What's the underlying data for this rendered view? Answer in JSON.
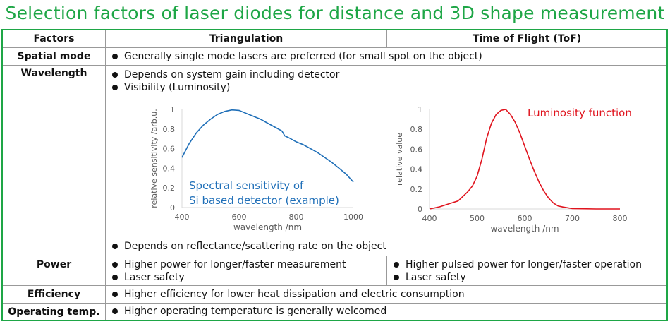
{
  "title": "Selection factors of laser diodes for distance and 3D shape measurement",
  "colors": {
    "accent": "#1ea646",
    "detector_curve": "#1f6fb8",
    "luminosity_curve": "#e0141e"
  },
  "headers": {
    "factors": "Factors",
    "triangulation": "Triangulation",
    "tof": "Time of Flight (ToF)"
  },
  "rows": {
    "spatial": {
      "label": "Spatial mode",
      "items": [
        "Generally single mode lasers are preferred (for small spot on the object)"
      ]
    },
    "wavelength": {
      "label": "Wavelength",
      "items": [
        "Depends on system gain including detector",
        "Visibility (Luminosity)"
      ],
      "bottom_item": "Depends on reflectance/scattering rate on the object"
    },
    "power": {
      "label": "Power",
      "triangulation": [
        "Higher power for longer/faster measurement",
        "Laser safety"
      ],
      "tof": [
        "Higher pulsed power for longer/faster operation",
        "Laser safety"
      ]
    },
    "efficiency": {
      "label": "Efficiency",
      "items": [
        "Higher efficiency for lower heat dissipation and electric consumption"
      ]
    },
    "operating": {
      "label": "Operating temp.",
      "items": [
        "Higher operating temperature is generally welcomed"
      ]
    }
  },
  "chart_data": [
    {
      "type": "line",
      "xlabel": "wavelength /nm",
      "ylabel": "relative sensitivity /arb.u.",
      "annotation": [
        "Spectral sensitivity of",
        "Si based detector (example)"
      ],
      "xlim": [
        400,
        1000
      ],
      "ylim": [
        0,
        1
      ],
      "xticks": [
        "400",
        "600",
        "800",
        "1000"
      ],
      "yticks": [
        "0",
        "0.2",
        "0.4",
        "0.6",
        "0.8",
        "1"
      ],
      "grid": false,
      "x": [
        400,
        425,
        450,
        475,
        500,
        525,
        550,
        575,
        600,
        625,
        650,
        675,
        700,
        725,
        750,
        760,
        775,
        800,
        825,
        850,
        875,
        900,
        925,
        950,
        975,
        1000
      ],
      "y": [
        0.51,
        0.65,
        0.76,
        0.84,
        0.9,
        0.95,
        0.98,
        0.995,
        0.99,
        0.96,
        0.93,
        0.9,
        0.86,
        0.82,
        0.78,
        0.73,
        0.71,
        0.67,
        0.64,
        0.6,
        0.56,
        0.51,
        0.46,
        0.4,
        0.34,
        0.26
      ]
    },
    {
      "type": "line",
      "xlabel": "wavelength /nm",
      "ylabel": "relative value",
      "annotation": [
        "Luminosity function"
      ],
      "xlim": [
        400,
        800
      ],
      "ylim": [
        0,
        1
      ],
      "xticks": [
        "400",
        "500",
        "600",
        "700",
        "800"
      ],
      "yticks": [
        "0",
        "0.2",
        "0.4",
        "0.6",
        "0.8",
        "1"
      ],
      "grid": false,
      "x": [
        400,
        420,
        440,
        460,
        480,
        490,
        500,
        510,
        520,
        530,
        540,
        550,
        560,
        570,
        580,
        590,
        600,
        610,
        620,
        630,
        640,
        650,
        660,
        670,
        680,
        700,
        750,
        800
      ],
      "y": [
        0,
        0.02,
        0.05,
        0.08,
        0.17,
        0.23,
        0.33,
        0.5,
        0.71,
        0.86,
        0.95,
        0.99,
        1.0,
        0.95,
        0.87,
        0.76,
        0.63,
        0.5,
        0.38,
        0.27,
        0.18,
        0.11,
        0.06,
        0.03,
        0.02,
        0.004,
        0,
        0
      ]
    }
  ]
}
